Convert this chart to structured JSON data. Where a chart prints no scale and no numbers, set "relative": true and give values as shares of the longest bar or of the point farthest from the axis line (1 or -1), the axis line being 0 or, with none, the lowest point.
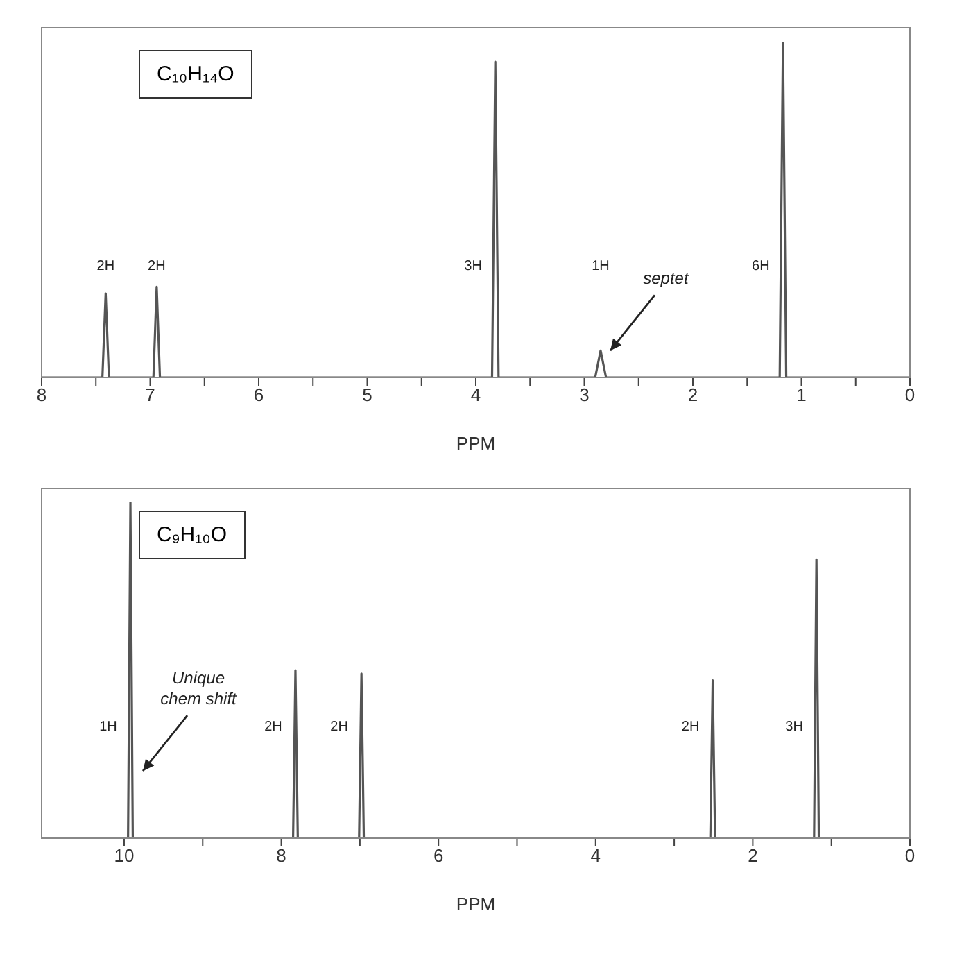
{
  "chart_data": [
    {
      "type": "line",
      "title": "C₁₀H₁₄O",
      "xlabel": "PPM",
      "relative": true,
      "marker": "none",
      "line_style": "solid",
      "xlim": [
        8,
        0
      ],
      "xticks": [
        8,
        {
          "value": 7.5,
          "label": null
        },
        7,
        {
          "value": 6.5,
          "label": null
        },
        6,
        {
          "value": 5.5,
          "label": null
        },
        5,
        {
          "value": 4.5,
          "label": null
        },
        4,
        {
          "value": 3.5,
          "label": null
        },
        3,
        {
          "value": 2.5,
          "label": null
        },
        2,
        {
          "value": 1.5,
          "label": null
        },
        1,
        {
          "value": 0.5,
          "label": null
        },
        0
      ],
      "series": [
        {
          "color": "#555555",
          "x": [
            8,
            7.44,
            7.41,
            7.38,
            6.97,
            6.94,
            6.91,
            3.85,
            3.82,
            3.79,
            2.9,
            2.85,
            2.8,
            1.2,
            1.17,
            1.14,
            0
          ],
          "values": [
            0,
            0,
            0.25,
            0,
            0,
            0.27,
            0,
            0,
            0.94,
            0,
            0,
            0.08,
            0,
            0,
            1,
            0,
            0
          ]
        }
      ],
      "annotations": [
        "2H",
        "2H",
        "3H",
        "1H",
        "6H",
        {
          "text": "septet",
          "x": 2.85,
          "y": 0.08
        }
      ]
    },
    {
      "type": "line",
      "title": "C₉H₁₀O",
      "xlabel": "PPM",
      "relative": true,
      "marker": "none",
      "line_style": "solid",
      "xlim": [
        11.05,
        0
      ],
      "xticks": [
        10,
        {
          "value": 9,
          "label": null
        },
        8,
        {
          "value": 7,
          "label": null
        },
        6,
        {
          "value": 5,
          "label": null
        },
        4,
        {
          "value": 3,
          "label": null
        },
        2,
        {
          "value": 1,
          "label": null
        },
        0
      ],
      "series": [
        {
          "color": "#555555",
          "x": [
            11.05,
            9.95,
            9.92,
            9.89,
            7.85,
            7.82,
            7.79,
            7.01,
            6.98,
            6.95,
            2.54,
            2.51,
            2.48,
            1.22,
            1.19,
            1.16,
            0
          ],
          "values": [
            0,
            0,
            1,
            0,
            0,
            0.5,
            0,
            0,
            0.49,
            0,
            0,
            0.47,
            0,
            0,
            0.83,
            0,
            0
          ]
        }
      ],
      "annotations": [
        "1H",
        "2H",
        "2H",
        "2H",
        "3H",
        "Unique chem shift"
      ]
    }
  ]
}
